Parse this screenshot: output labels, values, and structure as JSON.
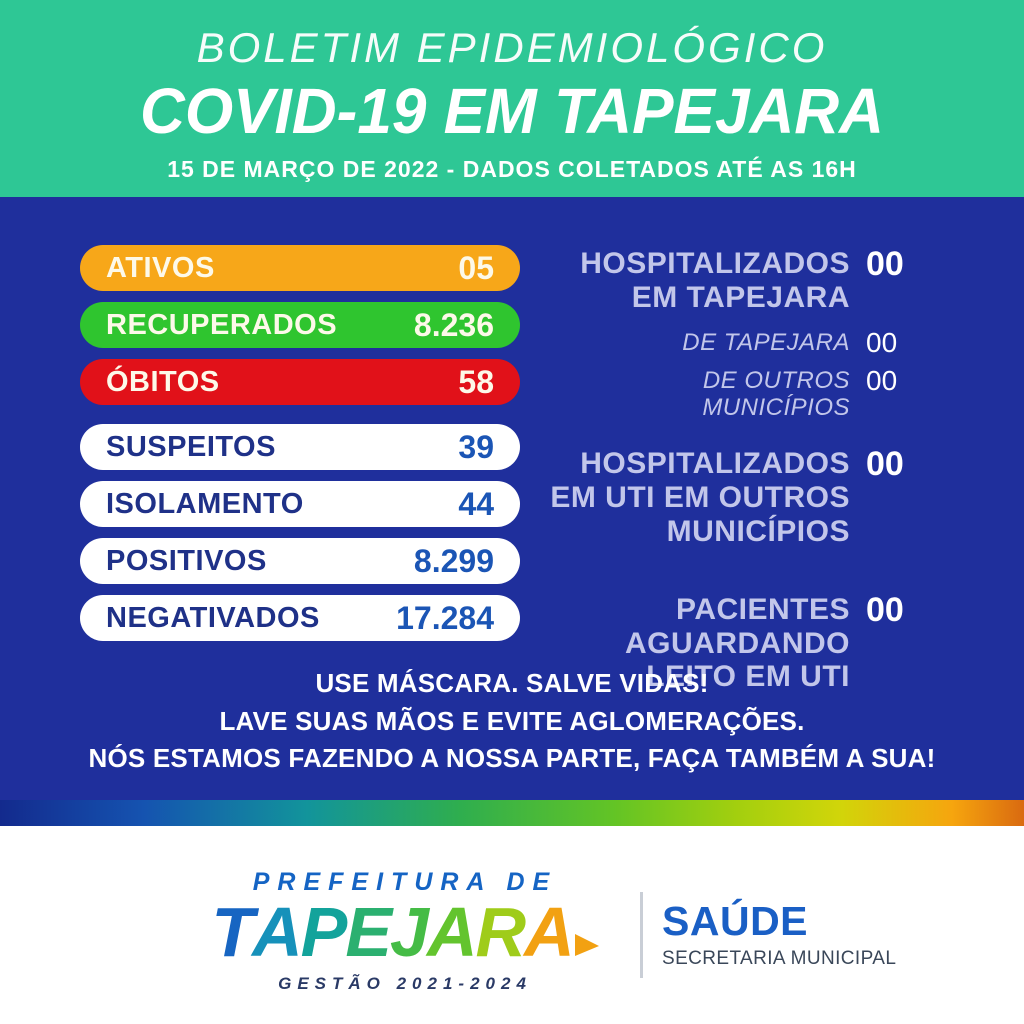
{
  "header": {
    "kicker": "BOLETIM EPIDEMIOLÓGICO",
    "title": "COVID-19 EM TAPEJARA",
    "date_line": "15 DE MARÇO DE 2022 - DADOS COLETADOS ATÉ AS 16H",
    "bg_color": "#2EC795"
  },
  "panel": {
    "bg_color": "#1F2F9C"
  },
  "stats_pills": [
    {
      "label": "ATIVOS",
      "value": "05",
      "bg": "#F7A719",
      "text": "#FDF9E9"
    },
    {
      "label": "RECUPERADOS",
      "value": "8.236",
      "bg": "#2FC52F",
      "text": "#FDF9E9"
    },
    {
      "label": "ÓBITOS",
      "value": "58",
      "bg": "#E11119",
      "text": "#FDF9E9"
    },
    {
      "label": "SUSPEITOS",
      "value": "39",
      "bg": "#FFFFFF",
      "text": "#1F3188",
      "value_color": "#1B55B5"
    },
    {
      "label": "ISOLAMENTO",
      "value": "44",
      "bg": "#FFFFFF",
      "text": "#1F3188",
      "value_color": "#1B55B5"
    },
    {
      "label": "POSITIVOS",
      "value": "8.299",
      "bg": "#FFFFFF",
      "text": "#1F3188",
      "value_color": "#1B55B5"
    },
    {
      "label": "NEGATIVADOS",
      "value": "17.284",
      "bg": "#FFFFFF",
      "text": "#1F3188",
      "value_color": "#1B55B5"
    }
  ],
  "hospital_stats": [
    {
      "label": "HOSPITALIZADOS\nEM TAPEJARA",
      "value": "00",
      "style": "primary"
    },
    {
      "label": "DE TAPEJARA",
      "value": "00",
      "style": "secondary"
    },
    {
      "label": "DE OUTROS MUNICÍPIOS",
      "value": "00",
      "style": "secondary"
    },
    {
      "label": "HOSPITALIZADOS\nEM UTI EM OUTROS\nMUNICÍPIOS",
      "value": "00",
      "style": "primary"
    },
    {
      "label": "PACIENTES\nAGUARDANDO\nLEITO EM UTI",
      "value": "00",
      "style": "primary"
    }
  ],
  "messages": [
    "USE MÁSCARA. SALVE VIDAS!",
    "LAVE SUAS MÃOS E EVITE AGLOMERAÇÕES.",
    "NÓS ESTAMOS FAZENDO A NOSSA PARTE, FAÇA TAMBÉM A SUA!"
  ],
  "rainbow_colors": [
    "#132A8D",
    "#1553B0",
    "#12949B",
    "#2FAE4E",
    "#63C425",
    "#A3CF0E",
    "#D1D50A",
    "#F6A50E",
    "#D96A10"
  ],
  "footer": {
    "prefeitura_line": "PREFEITURA DE",
    "logo_letters": [
      "T",
      "A",
      "P",
      "E",
      "J",
      "A",
      "R",
      "A"
    ],
    "logo_letter_colors": [
      "#1765C2",
      "#1691BA",
      "#13A39B",
      "#2BB070",
      "#45BC46",
      "#63C42E",
      "#9FCC1A",
      "#F2A112"
    ],
    "gestao_line": "GESTÃO 2021-2024",
    "dept_name": "SAÚDE",
    "dept_sub": "SECRETARIA MUNICIPAL"
  }
}
